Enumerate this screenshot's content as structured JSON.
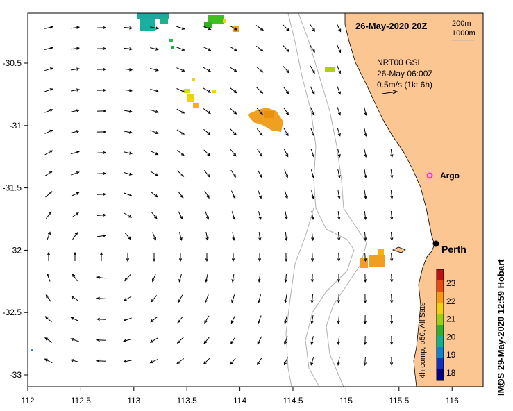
{
  "map": {
    "date_label": "26-May-2020 20Z",
    "depth_contours": [
      "200m",
      "1000m"
    ],
    "vector_legend": {
      "product": "NRT00 GSL",
      "time": "26-May 06:00Z",
      "scale": "0.5m/s (1kt 6h)"
    },
    "places": {
      "argo": "Argo",
      "perth": "Perth"
    },
    "credit": "IMOS 29-May-2020 12:59 Hobart",
    "copyright_symbol": "©",
    "colorbar": {
      "label": "4h comp, p50, All Sats",
      "ticks": [
        "23",
        "22",
        "21",
        "20",
        "19",
        "18"
      ],
      "colors": [
        "#c01010",
        "#e84a10",
        "#f79a10",
        "#f2d010",
        "#9ad010",
        "#30b030",
        "#10b090",
        "#1080d0",
        "#1030c0",
        "#000080"
      ]
    },
    "lon_ticks": [
      "112",
      "112.5",
      "113",
      "113.5",
      "114",
      "114.5",
      "115",
      "115.5",
      "116"
    ],
    "lat_ticks": [
      "-30.5",
      "-31",
      "-31.5",
      "-32",
      "-32.5",
      "-33"
    ],
    "colors": {
      "land": "#fbc692",
      "contour": "#b0b0b0",
      "argo_marker": "#ff22ff",
      "arrow": "#000000"
    }
  }
}
